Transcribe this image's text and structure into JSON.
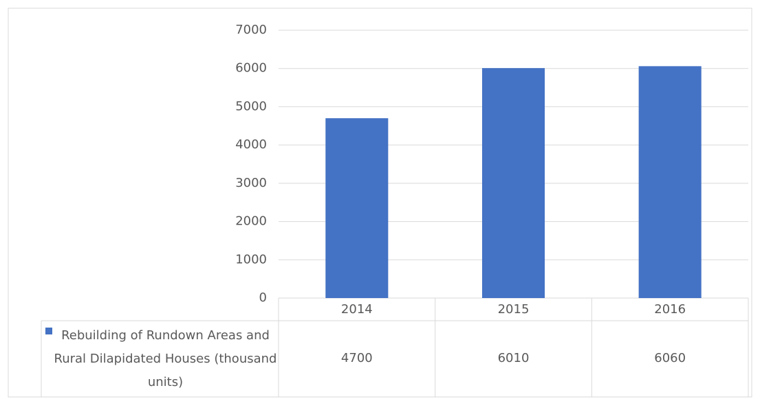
{
  "chart_data": {
    "type": "bar",
    "categories": [
      "2014",
      "2015",
      "2016"
    ],
    "series": [
      {
        "name": "Rebuilding of Rundown Areas and Rural Dilapidated Houses (thousand units)",
        "color": "#4472c4",
        "values": [
          4700,
          6010,
          6060
        ]
      }
    ],
    "ylim": [
      0,
      7000
    ],
    "yticks": [
      0,
      1000,
      2000,
      3000,
      4000,
      5000,
      6000,
      7000
    ],
    "grid": true,
    "data_table": true
  }
}
